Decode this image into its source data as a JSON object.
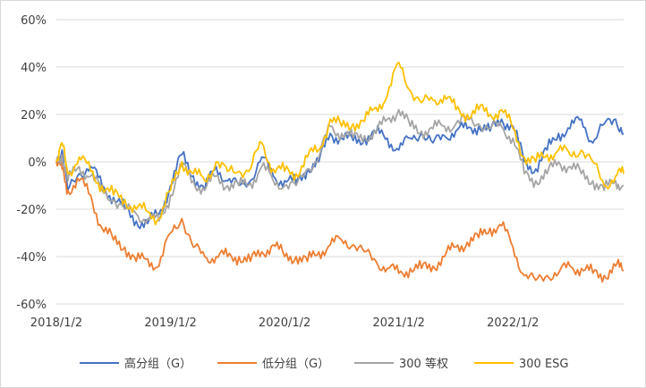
{
  "chart_data": {
    "type": "line",
    "title": "",
    "xlabel": "",
    "ylabel": "",
    "ylim": [
      -60,
      60
    ],
    "xlim": [
      0,
      4.97
    ],
    "y_ticks": [
      -60,
      -40,
      -20,
      0,
      20,
      40,
      60
    ],
    "y_tick_labels": [
      "-60%",
      "-40%",
      "-20%",
      "0%",
      "20%",
      "40%",
      "60%"
    ],
    "x_tick_labels": [
      "2018/1/2",
      "2019/1/2",
      "2020/1/2",
      "2021/1/2",
      "2022/1/2"
    ],
    "grid": "horizontal",
    "legend_position": "bottom",
    "x": [
      0,
      0.05,
      0.1,
      0.2,
      0.3,
      0.4,
      0.5,
      0.6,
      0.7,
      0.8,
      0.9,
      1.0,
      1.1,
      1.2,
      1.3,
      1.4,
      1.5,
      1.6,
      1.7,
      1.8,
      1.9,
      2.0,
      2.1,
      2.2,
      2.3,
      2.4,
      2.5,
      2.6,
      2.7,
      2.8,
      2.9,
      3.0,
      3.1,
      3.2,
      3.3,
      3.4,
      3.5,
      3.6,
      3.7,
      3.8,
      3.9,
      4.0,
      4.1,
      4.2,
      4.3,
      4.4,
      4.5,
      4.6,
      4.7,
      4.8,
      4.9,
      4.97
    ],
    "series": [
      {
        "name": "高分组（G）",
        "color": "#4472C4",
        "values": [
          0,
          5,
          -12,
          -5,
          -2,
          -10,
          -15,
          -20,
          -25,
          -26,
          -22,
          -10,
          3,
          -6,
          -12,
          -2,
          -8,
          -10,
          -8,
          2,
          -6,
          -8,
          -9,
          -3,
          0,
          12,
          10,
          9,
          10,
          12,
          10,
          5,
          10,
          12,
          8,
          11,
          13,
          14,
          15,
          13,
          18,
          15,
          0,
          -3,
          5,
          12,
          14,
          18,
          8,
          16,
          18,
          12
        ]
      },
      {
        "name": "低分组（G）",
        "color": "#ED7D31",
        "values": [
          0,
          -3,
          -12,
          -8,
          -14,
          -28,
          -33,
          -36,
          -42,
          -41,
          -44,
          -30,
          -24,
          -36,
          -40,
          -40,
          -40,
          -40,
          -42,
          -38,
          -35,
          -40,
          -40,
          -42,
          -38,
          -35,
          -33,
          -35,
          -38,
          -42,
          -45,
          -47,
          -45,
          -45,
          -44,
          -40,
          -36,
          -34,
          -32,
          -28,
          -27,
          -36,
          -48,
          -50,
          -48,
          -47,
          -44,
          -45,
          -47,
          -48,
          -44,
          -46
        ]
      },
      {
        "name": "300 等权",
        "color": "#A5A5A5",
        "values": [
          0,
          3,
          -8,
          -2,
          -6,
          -12,
          -16,
          -20,
          -22,
          -24,
          -25,
          -14,
          -2,
          -8,
          -12,
          -6,
          -10,
          -10,
          -9,
          -2,
          -8,
          -10,
          -10,
          -3,
          2,
          15,
          12,
          10,
          11,
          12,
          18,
          22,
          15,
          13,
          14,
          15,
          16,
          18,
          16,
          14,
          15,
          10,
          -5,
          -8,
          -5,
          0,
          -2,
          -5,
          -8,
          -12,
          -8,
          -10
        ]
      },
      {
        "name": "300 ESG",
        "color": "#FFC000",
        "values": [
          0,
          8,
          -5,
          2,
          -4,
          -10,
          -14,
          -16,
          -20,
          -21,
          -24,
          -12,
          0,
          -5,
          -8,
          0,
          -4,
          -4,
          -3,
          8,
          -3,
          -4,
          -5,
          2,
          5,
          18,
          15,
          16,
          17,
          23,
          28,
          42,
          30,
          25,
          26,
          28,
          22,
          20,
          22,
          20,
          22,
          14,
          2,
          0,
          3,
          5,
          3,
          5,
          0,
          -10,
          -6,
          -5
        ]
      }
    ]
  }
}
